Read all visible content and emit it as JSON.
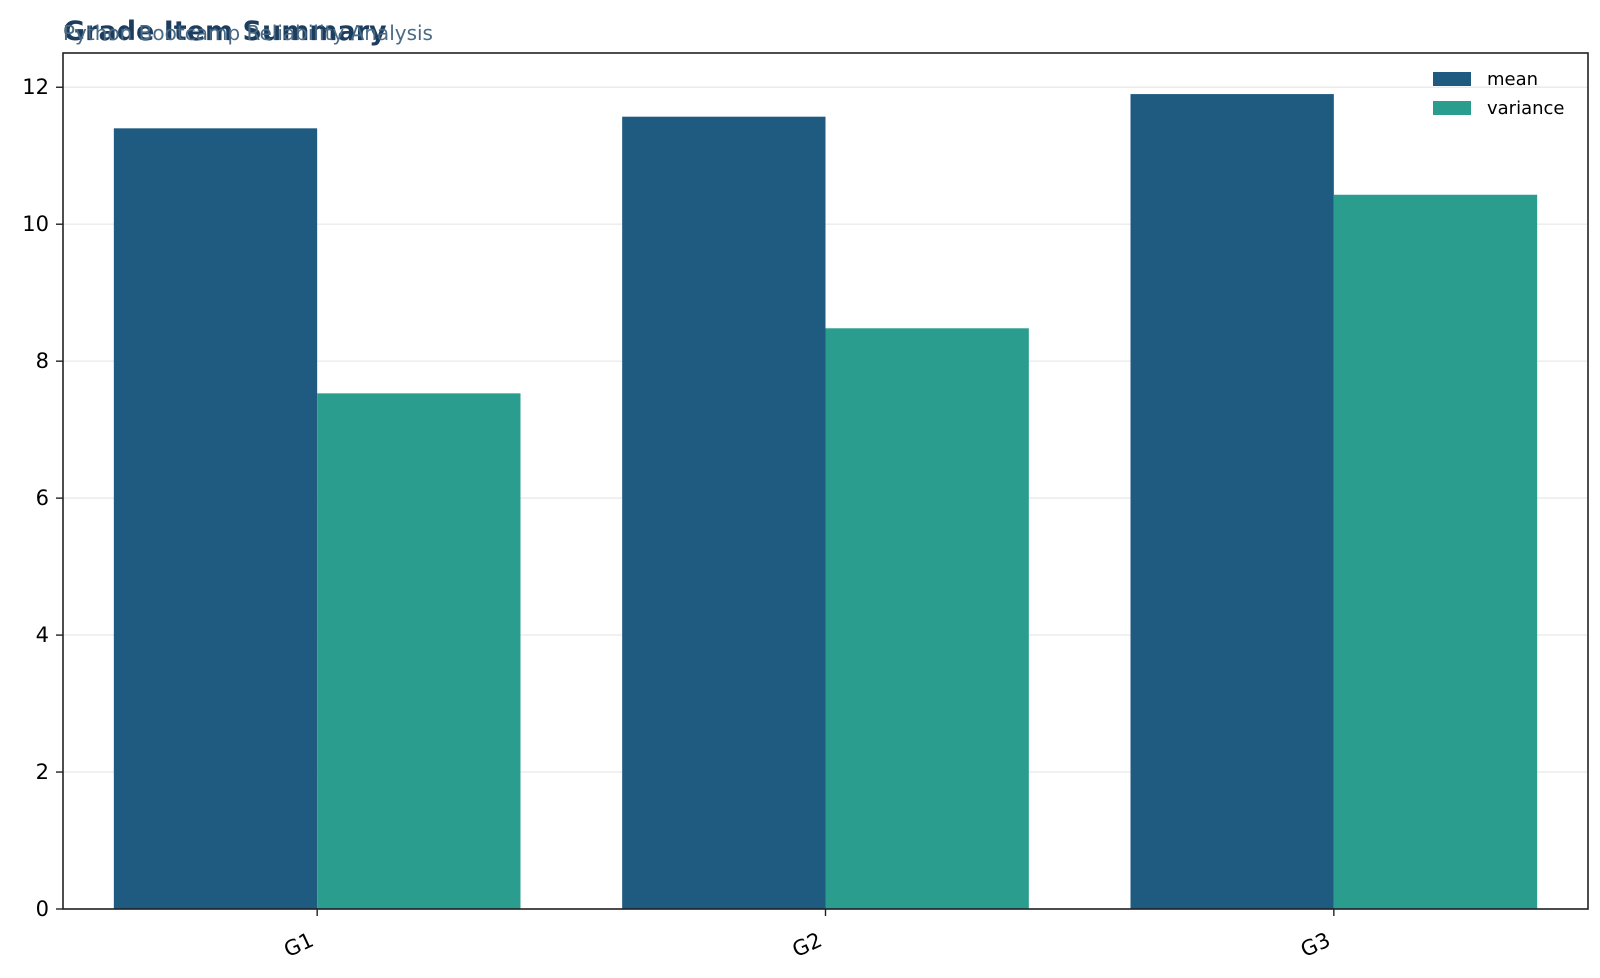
{
  "colors": {
    "mean": "#1f5a80",
    "variance": "#2a9d8f",
    "title": "#1c3d5e",
    "subtitle": "#4a6a85",
    "grid": "#ebebeb",
    "axis": "#222222"
  },
  "chart_data": {
    "type": "bar",
    "title": "Grade Item Summary",
    "subtitle": "Python Bootcamp Reliability Analysis",
    "xlabel": "",
    "ylabel": "",
    "categories": [
      "G1",
      "G2",
      "G3"
    ],
    "series": [
      {
        "name": "mean",
        "values": [
          11.4,
          11.57,
          11.9
        ]
      },
      {
        "name": "variance",
        "values": [
          7.53,
          8.48,
          10.43
        ]
      }
    ],
    "ylim": [
      0,
      12.5
    ],
    "yticks": [
      0,
      2,
      4,
      6,
      8,
      10,
      12
    ],
    "grid": true,
    "legend_position": "top-right"
  }
}
